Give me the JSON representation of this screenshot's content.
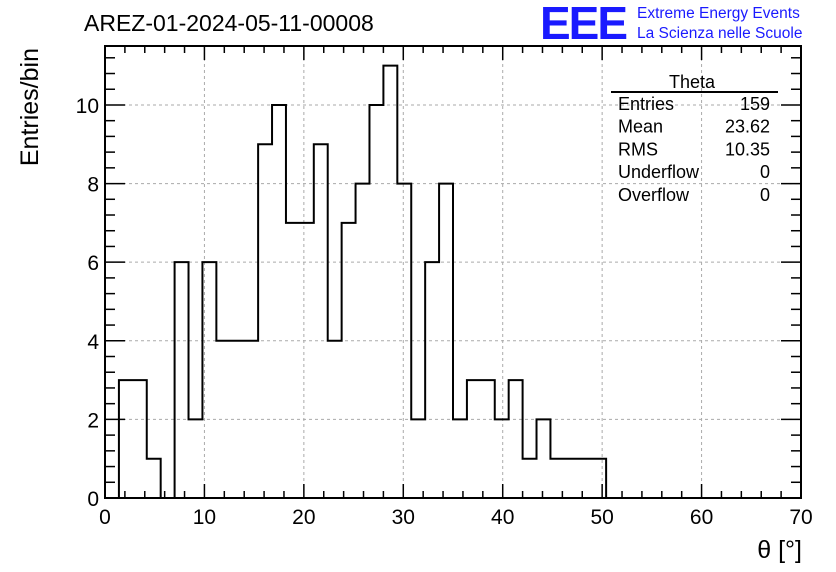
{
  "title": "AREZ-01-2024-05-11-00008",
  "logo": {
    "mark": "EEE",
    "line1": "Extreme Energy Events",
    "line2": "La Scienza nelle Scuole",
    "color": "#1a1aff"
  },
  "stats": {
    "title": "Theta",
    "rows": [
      {
        "label": "Entries",
        "value": "159"
      },
      {
        "label": "Mean",
        "value": "23.62"
      },
      {
        "label": "RMS",
        "value": "10.35"
      },
      {
        "label": "Underflow",
        "value": "0"
      },
      {
        "label": "Overflow",
        "value": "0"
      }
    ]
  },
  "chart_data": {
    "type": "histogram",
    "title": "AREZ-01-2024-05-11-00008",
    "xlabel": "θ [°]",
    "ylabel": "Entries/bin",
    "xlim": [
      0,
      70
    ],
    "ylim": [
      0,
      11.5
    ],
    "grid": true,
    "x_ticks": [
      0,
      10,
      20,
      30,
      40,
      50,
      60,
      70
    ],
    "y_ticks": [
      0,
      2,
      4,
      6,
      8,
      10
    ],
    "bin_width": 1.4,
    "bin_edges_start": 1.4,
    "values": [
      3,
      3,
      1,
      0,
      6,
      2,
      6,
      4,
      4,
      4,
      9,
      10,
      7,
      7,
      9,
      4,
      7,
      8,
      10,
      11,
      8,
      2,
      6,
      8,
      2,
      3,
      3,
      2,
      3,
      1,
      2,
      1,
      1,
      1,
      1
    ]
  }
}
